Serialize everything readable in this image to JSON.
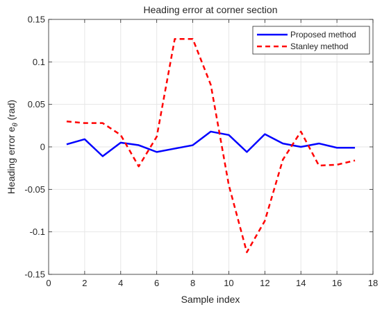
{
  "chart_data": {
    "type": "line",
    "title": "Heading error at corner section",
    "xlabel": "Sample index",
    "ylabel_main": "Heading error e",
    "ylabel_subscript": "θ",
    "ylabel_unit": "(rad)",
    "xlim": [
      0,
      18
    ],
    "ylim": [
      -0.15,
      0.15
    ],
    "xticks": [
      0,
      2,
      4,
      6,
      8,
      10,
      12,
      14,
      16,
      18
    ],
    "xtick_labels": [
      "0",
      "2",
      "4",
      "6",
      "8",
      "10",
      "12",
      "14",
      "16",
      "18"
    ],
    "yticks": [
      -0.15,
      -0.1,
      -0.05,
      0,
      0.05,
      0.1,
      0.15
    ],
    "ytick_labels": [
      "-0.15",
      "-0.1",
      "-0.05",
      "0",
      "0.05",
      "0.1",
      "0.15"
    ],
    "grid": true,
    "legend_position": "top-right",
    "series": [
      {
        "name": "Proposed method",
        "color": "#0000ff",
        "style": "solid",
        "x": [
          1,
          2,
          3,
          4,
          5,
          6,
          7,
          8,
          9,
          10,
          11,
          12,
          13,
          14,
          15,
          16,
          17
        ],
        "y": [
          0.003,
          0.009,
          -0.011,
          0.005,
          0.002,
          -0.006,
          -0.002,
          0.002,
          0.018,
          0.014,
          -0.006,
          0.015,
          0.004,
          0.0,
          0.004,
          -0.001,
          -0.001
        ]
      },
      {
        "name": "Stanley method",
        "color": "#ff0000",
        "style": "dashed",
        "x": [
          1,
          2,
          3,
          4,
          5,
          6,
          7,
          8,
          9,
          10,
          11,
          12,
          13,
          14,
          15,
          16,
          17
        ],
        "y": [
          0.03,
          0.028,
          0.028,
          0.014,
          -0.023,
          0.012,
          0.127,
          0.127,
          0.073,
          -0.045,
          -0.124,
          -0.087,
          -0.015,
          0.018,
          -0.022,
          -0.021,
          -0.016
        ]
      }
    ]
  }
}
